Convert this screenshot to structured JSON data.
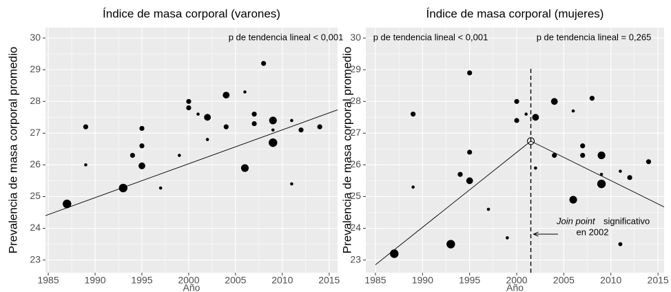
{
  "chart_data": [
    {
      "type": "scatter",
      "title": "Índice de masa corporal (varones)",
      "x_label": "Año",
      "y_label": "Prevalencia de masa corporal promedio",
      "x": [
        1987,
        1989,
        1989,
        1993,
        1994,
        1995,
        1995,
        1995,
        1997,
        1999,
        2000,
        2000,
        2001,
        2002,
        2002,
        2004,
        2004,
        2006,
        2006,
        2007,
        2007,
        2008,
        2009,
        2009,
        2009,
        2011,
        2011,
        2012,
        2014
      ],
      "values": [
        24.77,
        27.2,
        26.0,
        25.27,
        26.3,
        27.15,
        26.6,
        25.97,
        25.27,
        26.3,
        28.0,
        27.8,
        27.6,
        27.5,
        26.8,
        28.2,
        27.2,
        28.3,
        25.9,
        27.6,
        27.3,
        29.2,
        27.4,
        27.1,
        26.7,
        27.4,
        25.4,
        27.1,
        27.2
      ],
      "sizes": [
        4,
        2,
        1,
        4,
        2,
        2,
        2,
        3,
        1,
        1,
        2,
        2,
        1,
        3,
        1,
        3,
        2,
        1,
        3.5,
        2,
        2,
        2,
        3.5,
        1,
        4,
        1,
        1,
        2,
        2
      ],
      "color": "#000000",
      "trend": {
        "x": [
          1984.7,
          2016.5
        ],
        "values": [
          24.4,
          27.8
        ]
      },
      "annotations": [
        "p de tendencia lineal < 0,001"
      ],
      "xlim": [
        1984.7,
        2015.9
      ],
      "ylim": [
        22.6,
        30.33
      ],
      "xticks": [
        1985,
        1990,
        1995,
        2000,
        2005,
        2010,
        2015
      ],
      "yticks": [
        23,
        24,
        25,
        26,
        27,
        28,
        29,
        30
      ],
      "grid": true
    },
    {
      "type": "scatter",
      "title": "Índice de masa corporal (mujeres)",
      "x_label": "Año",
      "y_label": "Prevalencia de masa corporal promedio",
      "x": [
        1987,
        1989,
        1989,
        1993,
        1994,
        1995,
        1995,
        1995,
        1997,
        1999,
        2000,
        2000,
        2001,
        2002,
        2002,
        2004,
        2004,
        2006,
        2006,
        2007,
        2007,
        2008,
        2009,
        2009,
        2009,
        2011,
        2011,
        2012,
        2014
      ],
      "values": [
        23.2,
        27.6,
        25.3,
        23.5,
        25.7,
        28.9,
        26.4,
        25.5,
        24.6,
        23.7,
        28.0,
        27.4,
        27.6,
        27.5,
        25.9,
        28.0,
        26.3,
        27.7,
        24.9,
        26.6,
        26.3,
        28.1,
        26.3,
        25.7,
        25.4,
        25.8,
        23.5,
        25.6,
        26.1
      ],
      "sizes": [
        4,
        2,
        1,
        4,
        2,
        2,
        2,
        3,
        1,
        1,
        2,
        2,
        1,
        3,
        1,
        3,
        2,
        1,
        3.5,
        2,
        2,
        2,
        3.5,
        1,
        4,
        1,
        1.5,
        2,
        2
      ],
      "color": "#000000",
      "trend": {
        "x": [
          1985,
          2001.5,
          2016.5
        ],
        "values": [
          22.85,
          26.75,
          24.55
        ]
      },
      "joinpoint": {
        "x": 2001.5,
        "value": 26.75
      },
      "annotations": [
        "p de tendencia lineal < 0,001",
        "p de tendencia lineal = 0,265",
        "Join point",
        "significativo",
        "en 2002"
      ],
      "xlim": [
        1983.98,
        2015.65
      ],
      "ylim": [
        22.6,
        30.33
      ],
      "xticks": [
        1985,
        1990,
        1995,
        2000,
        2005,
        2010,
        2015
      ],
      "yticks": [
        23,
        24,
        25,
        26,
        27,
        28,
        29,
        30
      ],
      "grid": true
    }
  ]
}
